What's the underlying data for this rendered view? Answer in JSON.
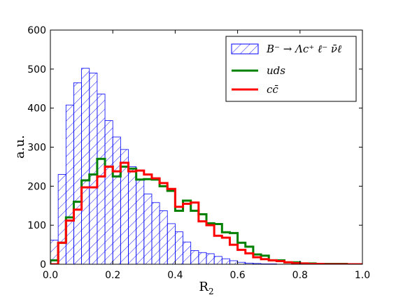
{
  "chart_data": {
    "type": "histogram",
    "title": "",
    "xlabel": "R",
    "xlabel_sub": "2",
    "ylabel": "a.u.",
    "xlim": [
      0.0,
      1.0
    ],
    "ylim": [
      0,
      600
    ],
    "xticks": [
      "0.0",
      "0.2",
      "0.4",
      "0.6",
      "0.8",
      "1.0"
    ],
    "yticks": [
      "0",
      "100",
      "200",
      "300",
      "400",
      "500",
      "600"
    ],
    "bin_width": 0.025,
    "legend_position": "top-right",
    "series": [
      {
        "name": "B⁻ → Λc⁺ ℓ⁻ ν̄ℓ",
        "style": "hatched",
        "color": "#0000ff",
        "values": [
          62,
          230,
          408,
          465,
          502,
          490,
          436,
          368,
          326,
          294,
          250,
          218,
          180,
          158,
          137,
          104,
          83,
          57,
          35,
          30,
          27,
          20,
          14,
          9,
          5,
          3,
          2,
          1,
          1,
          0,
          0,
          0,
          0,
          0,
          0,
          0,
          0,
          0,
          0,
          0
        ]
      },
      {
        "name": "uds",
        "style": "step",
        "color": "#008000",
        "values": [
          10,
          55,
          120,
          160,
          215,
          230,
          270,
          250,
          225,
          250,
          245,
          217,
          218,
          217,
          200,
          188,
          137,
          163,
          137,
          128,
          105,
          103,
          82,
          80,
          55,
          45,
          25,
          22,
          10,
          10,
          5,
          5,
          2,
          2,
          1,
          1,
          1,
          1,
          0,
          0
        ]
      },
      {
        "name": "cc̄",
        "style": "step",
        "color": "#ff0000",
        "values": [
          0,
          55,
          112,
          140,
          197,
          197,
          225,
          250,
          238,
          260,
          238,
          240,
          230,
          220,
          208,
          193,
          147,
          155,
          158,
          110,
          100,
          73,
          68,
          50,
          37,
          28,
          18,
          13,
          10,
          8,
          5,
          3,
          2,
          1,
          1,
          0,
          0,
          0,
          0,
          0
        ]
      }
    ]
  }
}
